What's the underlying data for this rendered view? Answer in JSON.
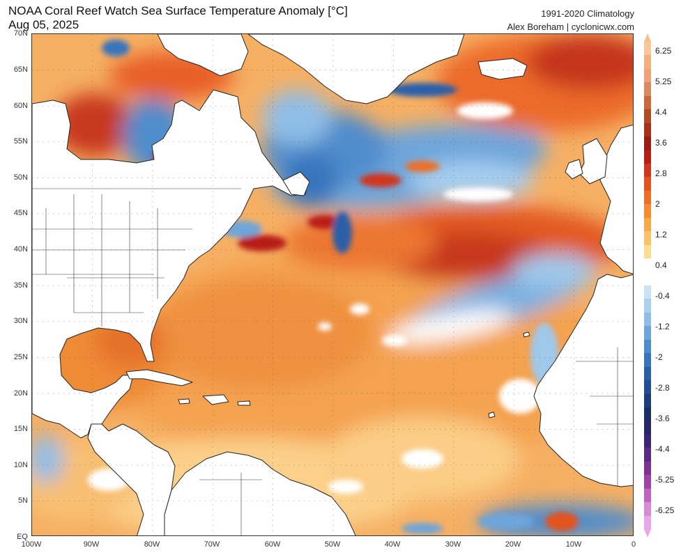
{
  "header": {
    "title": "NOAA Coral Reef Watch Sea Surface Temperature Anomaly [°C]",
    "date": "Aug 05, 2025",
    "climatology": "1991-2020 Climatology",
    "credit": "Alex Boreham | cyclonicwx.com"
  },
  "map": {
    "region": "North Atlantic",
    "lon_range": [
      -100,
      0
    ],
    "lat_range": [
      0,
      70
    ],
    "lat_labels": [
      "70N",
      "65N",
      "60N",
      "55N",
      "50N",
      "45N",
      "40N",
      "35N",
      "30N",
      "25N",
      "20N",
      "15N",
      "10N",
      "5N",
      "EQ"
    ],
    "lon_labels": [
      "100W",
      "90W",
      "80W",
      "70W",
      "60W",
      "50W",
      "40W",
      "30W",
      "20W",
      "10W",
      "0"
    ],
    "grid": "dotted",
    "anomaly_regions": [
      {
        "area": "Hudson Bay west",
        "anomaly": "warm"
      },
      {
        "area": "Hudson Bay east / James Bay",
        "anomaly": "cool"
      },
      {
        "area": "Labrador Sea and south of Greenland",
        "anomaly": "cool"
      },
      {
        "area": "Norwegian Sea / NE Atlantic",
        "anomaly": "strongly warm"
      },
      {
        "area": "Central North Atlantic 40-48N",
        "anomaly": "strongly warm"
      },
      {
        "area": "Azores / Canary region",
        "anomaly": "cool"
      },
      {
        "area": "Gulf of Mexico",
        "anomaly": "warm"
      },
      {
        "area": "Main Development Region / Caribbean",
        "anomaly": "warm"
      },
      {
        "area": "Gulf of Guinea",
        "anomaly": "cool"
      }
    ]
  },
  "colorbar": {
    "labels": [
      "6.25",
      "5.25",
      "4.4",
      "3.6",
      "2.8",
      "2",
      "1.2",
      "0.4",
      "-0.4",
      "-1.2",
      "-2",
      "-2.8",
      "-3.6",
      "-4.4",
      "-5.25",
      "-6.25"
    ],
    "colors": [
      "#f9c89a",
      "#f5b07d",
      "#efa27a",
      "#d98a60",
      "#c7693a",
      "#b24a22",
      "#a93019",
      "#9b1c14",
      "#b81f16",
      "#d2351b",
      "#e4521f",
      "#ef6d24",
      "#f48b30",
      "#f7a847",
      "#fac36a",
      "#fcdc92",
      "#ffffff",
      "#ffffff",
      "#c9e2f4",
      "#a9d0ee",
      "#8ebde6",
      "#6ea5da",
      "#4f8ccc",
      "#3775bd",
      "#2a5fa8",
      "#234d92",
      "#1d3c7b",
      "#1a2f66",
      "#26276a",
      "#3b2577",
      "#5a2a87",
      "#7b3496",
      "#9c44a8",
      "#c064c0",
      "#d98ad6",
      "#e8a8e8"
    ]
  }
}
